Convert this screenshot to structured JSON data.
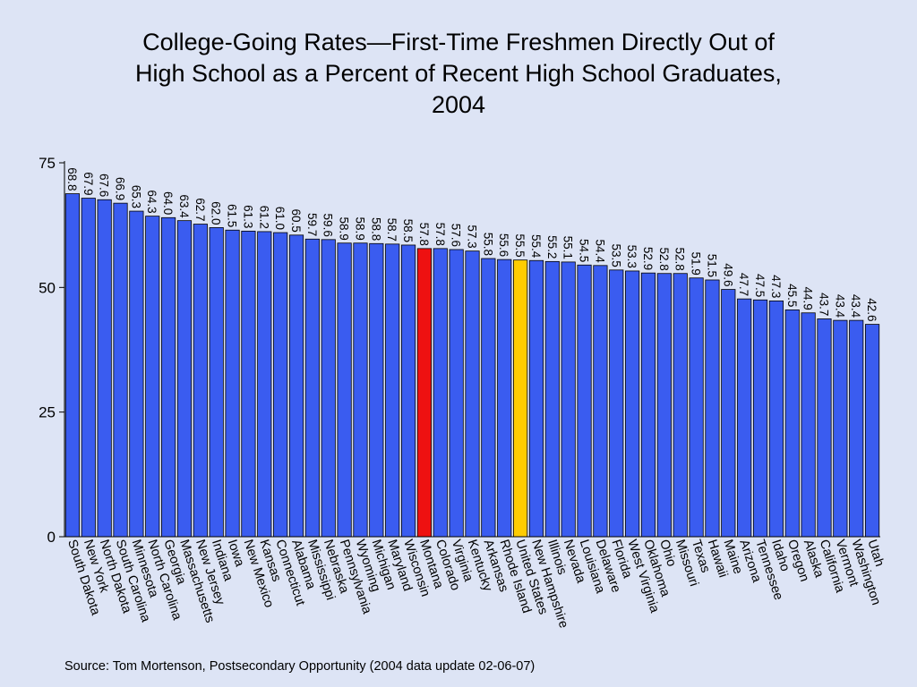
{
  "chart_data": {
    "type": "bar",
    "title_lines": [
      "College-Going Rates—First-Time Freshmen Directly Out of",
      "High School as a Percent of Recent High School Graduates,",
      "2004"
    ],
    "xlabel": "",
    "ylabel": "",
    "ylim": [
      0,
      75
    ],
    "yticks": [
      0,
      25,
      50,
      75
    ],
    "grid": false,
    "categories": [
      "South Dakota",
      "New York",
      "North Dakota",
      "South Carolina",
      "Minnesota",
      "North Carolina",
      "Georgia",
      "Massachusetts",
      "New Jersey",
      "Indiana",
      "Iowa",
      "New Mexico",
      "Kansas",
      "Connecticut",
      "Alabama",
      "Mississippi",
      "Nebraska",
      "Pennsylvania",
      "Wyoming",
      "Michigan",
      "Maryland",
      "Wisconsin",
      "Montana",
      "Colorado",
      "Virginia",
      "Kentucky",
      "Arkansas",
      "Rhode Island",
      "United States",
      "New Hampshire",
      "Illinois",
      "Nevada",
      "Louisiana",
      "Delaware",
      "Florida",
      "West Virginia",
      "Oklahoma",
      "Ohio",
      "Missouri",
      "Texas",
      "Hawaii",
      "Maine",
      "Arizona",
      "Tennessee",
      "Idaho",
      "Oregon",
      "Alaska",
      "California",
      "Vermont",
      "Washington",
      "Utah"
    ],
    "values": [
      68.8,
      67.9,
      67.6,
      66.9,
      65.3,
      64.3,
      64.0,
      63.4,
      62.7,
      62.0,
      61.5,
      61.3,
      61.2,
      61.0,
      60.5,
      59.7,
      59.6,
      58.9,
      58.9,
      58.8,
      58.7,
      58.5,
      57.8,
      57.8,
      57.6,
      57.3,
      55.8,
      55.6,
      55.5,
      55.4,
      55.2,
      55.1,
      54.5,
      54.4,
      53.5,
      53.3,
      52.9,
      52.8,
      52.8,
      51.9,
      51.5,
      49.6,
      47.7,
      47.5,
      47.3,
      45.5,
      44.9,
      43.7,
      43.4,
      43.4,
      42.6
    ],
    "value_labels": [
      "68.8",
      "67.9",
      "67.6",
      "66.9",
      "65.3",
      "64.3",
      "64.0",
      "63.4",
      "62.7",
      "62.0",
      "61.5",
      "61.3",
      "61.2",
      "61.0",
      "60.5",
      "59.7",
      "59.6",
      "58.9",
      "58.9",
      "58.8",
      "58.7",
      "58.5",
      "57.8",
      "57.8",
      "57.6",
      "57.3",
      "55.8",
      "55.6",
      "55.5",
      "55.4",
      "55.2",
      "55.1",
      "54.5",
      "54.4",
      "53.5",
      "53.3",
      "52.9",
      "52.8",
      "52.8",
      "51.9",
      "51.5",
      "49.6",
      "47.7",
      "47.5",
      "47.3",
      "45.5",
      "44.9",
      "43.7",
      "43.4",
      "43.4",
      "42.6"
    ],
    "colors": {
      "default": "#3a5cf0",
      "highlight": {
        "Montana": "#ee1111",
        "United States": "#ffcc00"
      }
    }
  },
  "source": "Source:  Tom Mortenson, Postsecondary Opportunity (2004 data update 02-06-07)"
}
